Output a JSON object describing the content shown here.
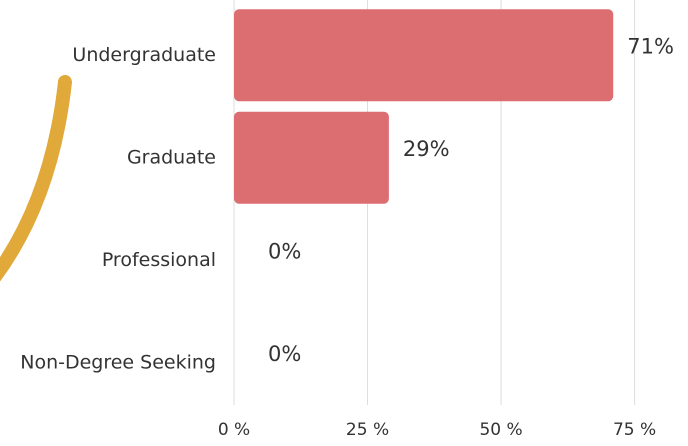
{
  "chart_data": {
    "type": "bar",
    "orientation": "horizontal",
    "categories": [
      "Undergraduate",
      "Graduate",
      "Professional",
      "Non-Degree Seeking"
    ],
    "values": [
      71,
      29,
      0,
      0
    ],
    "value_labels": [
      "71%",
      "29%",
      "0%",
      "0%"
    ],
    "color": "#dc6e72",
    "xlim": [
      0,
      85
    ],
    "xticks": [
      {
        "value": 0,
        "label": "0 %"
      },
      {
        "value": 25,
        "label": "25 %"
      },
      {
        "value": 50,
        "label": "50 %"
      },
      {
        "value": 75,
        "label": "75 %"
      }
    ],
    "grid": true
  }
}
